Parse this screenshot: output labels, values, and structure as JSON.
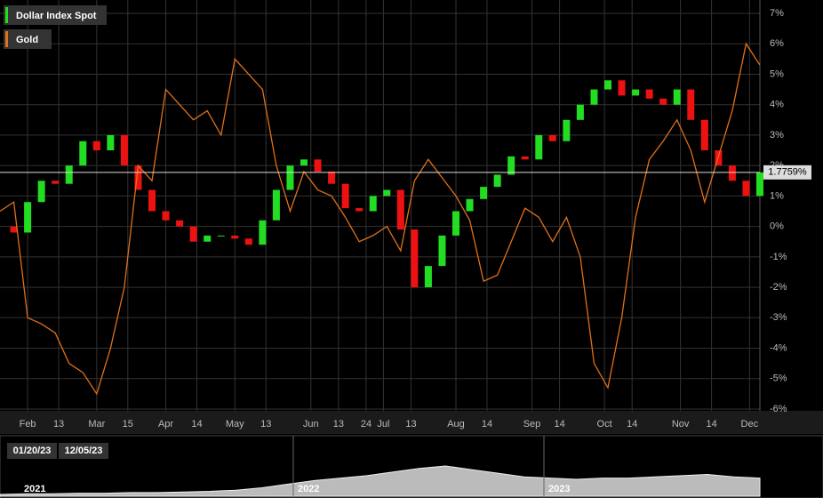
{
  "chart_data": {
    "type": "candle-line",
    "x": [
      0,
      4,
      8,
      12,
      16,
      20,
      24,
      28,
      32,
      36,
      40,
      44,
      48,
      52,
      56,
      60,
      64,
      68,
      72,
      76,
      80,
      84,
      88,
      92,
      96,
      100,
      104,
      108,
      112,
      116,
      120,
      124,
      128,
      132,
      136,
      140,
      144,
      148,
      152,
      156,
      160,
      164,
      168,
      172,
      176,
      180,
      184,
      188,
      192,
      196,
      200,
      204,
      208,
      212,
      216,
      220
    ],
    "series": [
      {
        "name": "Dollar Index Spot",
        "kind": "candle",
        "color": "#22dd22",
        "up_color": "#22dd22",
        "down_color": "#ee1111",
        "values": [
          0,
          -0.2,
          0.8,
          1.5,
          1.4,
          2.0,
          2.8,
          2.5,
          3.0,
          2.0,
          1.2,
          0.5,
          0.2,
          0.0,
          -0.5,
          -0.3,
          -0.3,
          -0.4,
          -0.6,
          0.2,
          1.2,
          2.0,
          2.2,
          1.8,
          1.4,
          0.6,
          0.5,
          1.0,
          1.2,
          -0.1,
          -2.0,
          -1.3,
          -0.3,
          0.5,
          0.9,
          1.3,
          1.7,
          2.3,
          2.2,
          3.0,
          2.8,
          3.5,
          4.0,
          4.5,
          4.8,
          4.3,
          4.5,
          4.2,
          4.0,
          4.5,
          3.5,
          2.5,
          2.0,
          1.5,
          1.0,
          1.7759
        ]
      },
      {
        "name": "Gold",
        "kind": "line",
        "color": "#e0701a",
        "values": [
          0.5,
          0.8,
          -3.0,
          -3.2,
          -3.5,
          -4.5,
          -4.8,
          -5.5,
          -4.0,
          -2.0,
          2.0,
          1.5,
          4.5,
          4.0,
          3.5,
          3.8,
          3.0,
          5.5,
          5.0,
          4.5,
          2.0,
          0.5,
          1.8,
          1.2,
          1.0,
          0.3,
          -0.5,
          -0.3,
          0.0,
          -0.8,
          1.5,
          2.2,
          1.6,
          1.0,
          0.2,
          -1.8,
          -1.6,
          -0.5,
          0.6,
          0.3,
          -0.5,
          0.3,
          -1.0,
          -4.5,
          -5.3,
          -3.0,
          0.3,
          2.2,
          2.8,
          3.5,
          2.5,
          0.8,
          2.3,
          3.8,
          6.0,
          5.3
        ]
      }
    ],
    "marker": {
      "value": 1.7759,
      "label": "1.7759%"
    },
    "xlim": [
      0,
      220
    ],
    "xticks": [
      {
        "value": 8,
        "label": "Feb"
      },
      {
        "value": 17,
        "label": "13"
      },
      {
        "value": 28,
        "label": "Mar"
      },
      {
        "value": 37,
        "label": "15"
      },
      {
        "value": 48,
        "label": "Apr"
      },
      {
        "value": 57,
        "label": "14"
      },
      {
        "value": 68,
        "label": "May"
      },
      {
        "value": 77,
        "label": "13"
      },
      {
        "value": 90,
        "label": "Jun"
      },
      {
        "value": 98,
        "label": "13"
      },
      {
        "value": 106,
        "label": "24"
      },
      {
        "value": 111,
        "label": "Jul"
      },
      {
        "value": 119,
        "label": "13"
      },
      {
        "value": 132,
        "label": "Aug"
      },
      {
        "value": 141,
        "label": "14"
      },
      {
        "value": 154,
        "label": "Sep"
      },
      {
        "value": 162,
        "label": "14"
      },
      {
        "value": 175,
        "label": "Oct"
      },
      {
        "value": 183,
        "label": "14"
      },
      {
        "value": 197,
        "label": "Nov"
      },
      {
        "value": 206,
        "label": "14"
      },
      {
        "value": 217,
        "label": "Dec"
      }
    ],
    "ylim": [
      -6,
      7
    ],
    "yticks": [
      {
        "value": -6,
        "label": "-6%"
      },
      {
        "value": -5,
        "label": "-5%"
      },
      {
        "value": -4,
        "label": "-4%"
      },
      {
        "value": -3,
        "label": "-3%"
      },
      {
        "value": -2,
        "label": "-2%"
      },
      {
        "value": -1,
        "label": "-1%"
      },
      {
        "value": 0,
        "label": "0%"
      },
      {
        "value": 1,
        "label": "1%"
      },
      {
        "value": 2,
        "label": "2%"
      },
      {
        "value": 3,
        "label": "3%"
      },
      {
        "value": 4,
        "label": "4%"
      },
      {
        "value": 5,
        "label": "5%"
      },
      {
        "value": 6,
        "label": "6%"
      },
      {
        "value": 7,
        "label": "7%"
      }
    ],
    "grid": true,
    "navigator": {
      "range_start": "01/20/23",
      "range_end": "12/05/23",
      "years": [
        "2021",
        "2022",
        "2023"
      ],
      "values": [
        3,
        4,
        4,
        5,
        5,
        6,
        6,
        7,
        8,
        10,
        14,
        20,
        26,
        30,
        34,
        40,
        46,
        50,
        44,
        38,
        32,
        30,
        28,
        30,
        30,
        32,
        34,
        36,
        32,
        30
      ],
      "ylim": [
        0,
        100
      ]
    }
  }
}
